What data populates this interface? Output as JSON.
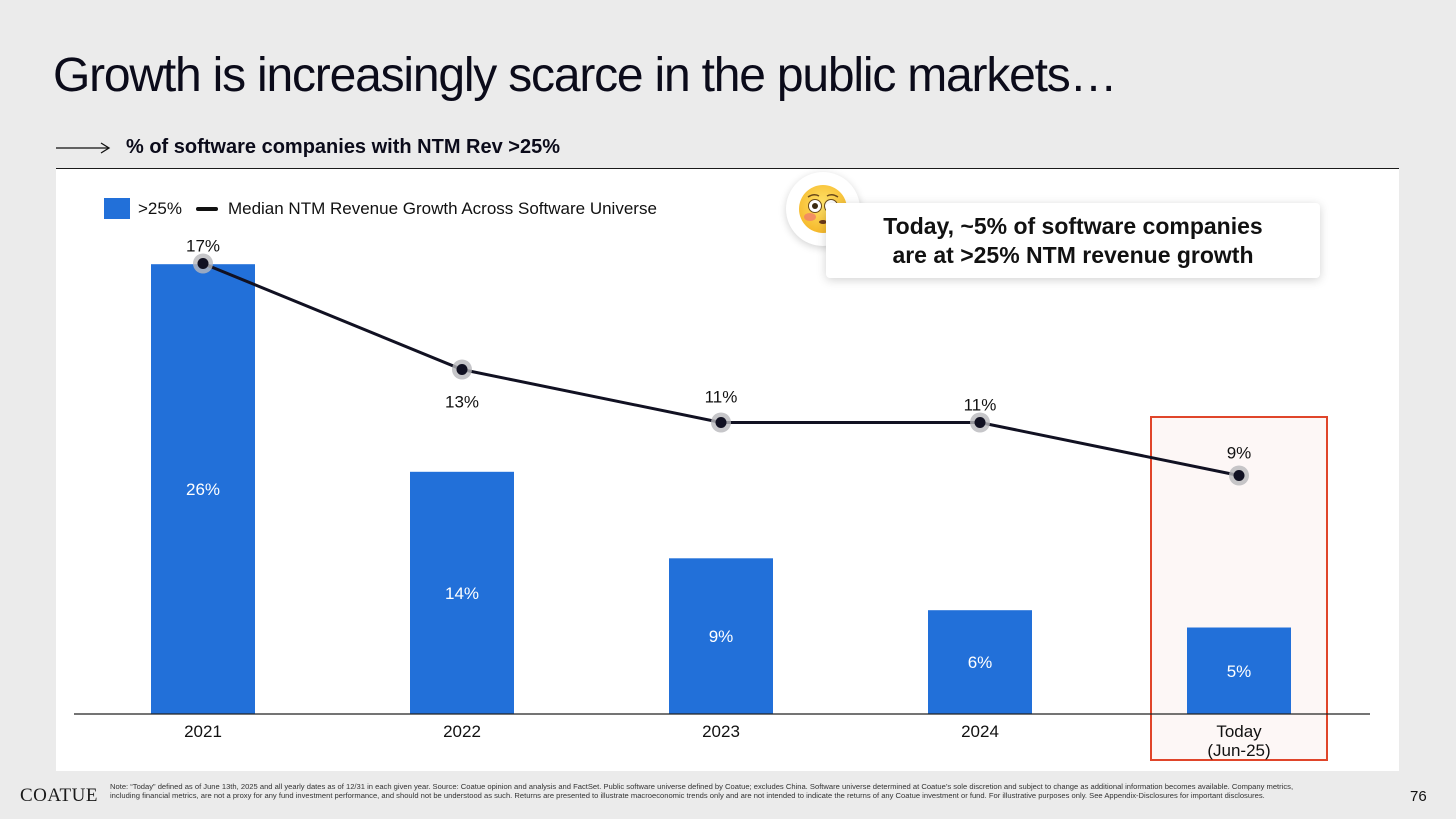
{
  "title": "Growth is increasingly scarce in the public markets…",
  "subtitle": "% of software companies with NTM Rev >25%",
  "legend": {
    "bar_label": ">25%",
    "line_label": "Median NTM Revenue Growth Across Software Universe"
  },
  "callout": {
    "emoji": "😳",
    "line1": "Today, ~5% of software companies",
    "line2": "are at >25% NTM revenue growth"
  },
  "chart_data": {
    "type": "bar",
    "categories": [
      "2021",
      "2022",
      "2023",
      "2024",
      "Today\n(Jun-25)"
    ],
    "series": [
      {
        "name": ">25%",
        "type": "bar",
        "values": [
          26,
          14,
          9,
          6,
          5
        ],
        "value_labels": [
          "26%",
          "14%",
          "9%",
          "6%",
          "5%"
        ]
      },
      {
        "name": "Median NTM Revenue Growth Across Software Universe",
        "type": "line",
        "values": [
          17,
          13,
          11,
          11,
          9
        ],
        "value_labels": [
          "17%",
          "13%",
          "11%",
          "11%",
          "9%"
        ]
      }
    ],
    "highlight_category": "Today\n(Jun-25)",
    "legend_position": "top-left",
    "grid": false
  },
  "colors": {
    "bar": "#2270d9",
    "line": "#111122",
    "marker_halo": "#b8b8bc",
    "highlight_border": "#e0452a",
    "highlight_fill": "#fdf7f6"
  },
  "footer": {
    "logo": "COATUE",
    "note": "Note: “Today” defined as of June 13th, 2025 and all yearly dates as of 12/31 in each given year.  Source: Coatue opinion and analysis and FactSet. Public software universe defined by Coatue; excludes China. Software universe determined at Coatue’s sole discretion and subject to change as additional information becomes available. Company metrics, including financial metrics, are not a proxy for any fund investment performance, and should not be understood as such. Returns are presented to illustrate macroeconomic trends only and are not intended to indicate the returns of any Coatue investment or fund. For illustrative purposes only. See Appendix-Disclosures for important disclosures.",
    "page": "76"
  }
}
